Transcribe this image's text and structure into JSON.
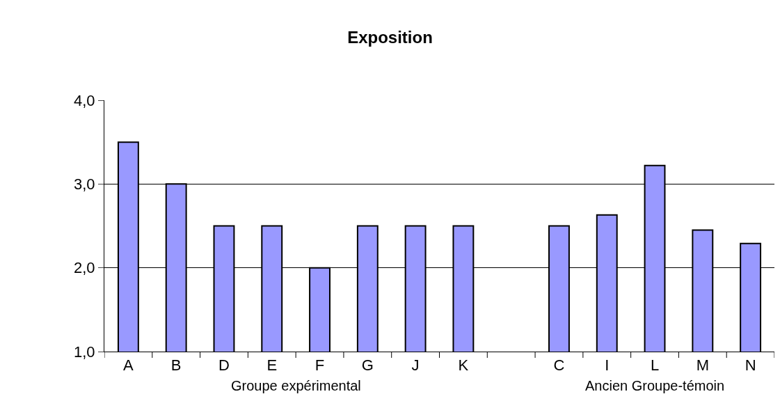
{
  "chart_data": {
    "type": "bar",
    "title": "Exposition",
    "categories": [
      "A",
      "B",
      "D",
      "E",
      "F",
      "G",
      "J",
      "K",
      null,
      "C",
      "I",
      "L",
      "M",
      "N"
    ],
    "values": [
      3.5,
      3.0,
      2.5,
      2.5,
      2.0,
      2.5,
      2.5,
      2.5,
      null,
      2.5,
      2.63,
      3.22,
      2.45,
      2.29
    ],
    "color": "#9999ff",
    "ylim": [
      1,
      4
    ],
    "yticks": [
      {
        "value": 1,
        "label": "1,0"
      },
      {
        "value": 2,
        "label": "2,0"
      },
      {
        "value": 3,
        "label": "3,0"
      },
      {
        "value": 4,
        "label": "4,0"
      }
    ],
    "grid": "y",
    "annotations": [
      "Groupe expérimental",
      "Ancien Groupe-témoin"
    ]
  }
}
